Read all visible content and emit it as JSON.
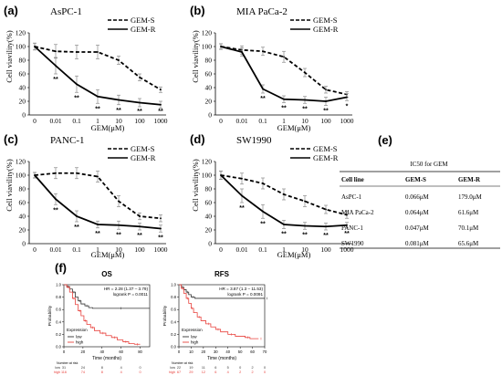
{
  "figure": {
    "viability_panels": [
      {
        "label": "(a)",
        "title": "AsPC-1",
        "ylabel": "Cell viavility(%)",
        "xlabel": "GEM(μM)",
        "xticks": [
          "0",
          "0.01",
          "0.1",
          "1",
          "10",
          "100",
          "1000"
        ],
        "yticks": [
          "0",
          "20",
          "40",
          "60",
          "80",
          "100",
          "120"
        ],
        "ylim": [
          0,
          120
        ],
        "legend": [
          "GEM-S",
          "GEM-R"
        ],
        "series": [
          {
            "name": "GEM-S",
            "style": "dashed",
            "values": [
              100,
              93,
              92,
              92,
              80,
              55,
              37
            ],
            "errors": [
              5,
              10,
              10,
              10,
              6,
              5,
              4
            ]
          },
          {
            "name": "GEM-R",
            "style": "solid",
            "values": [
              100,
              72,
              45,
              27,
              22,
              18,
              15
            ],
            "errors": [
              5,
              12,
              12,
              10,
              7,
              6,
              5
            ]
          }
        ],
        "stars": [
          "",
          "**",
          "**",
          "**",
          "**",
          "**",
          "**"
        ]
      },
      {
        "label": "(b)",
        "title": "MIA PaCa-2",
        "ylabel": "Cell viavility(%)",
        "xlabel": "GEM(μM)",
        "xticks": [
          "0",
          "0.01",
          "0.1",
          "1",
          "10",
          "100",
          "1000"
        ],
        "yticks": [
          "0",
          "20",
          "40",
          "60",
          "80",
          "100",
          "120"
        ],
        "ylim": [
          0,
          120
        ],
        "legend": [
          "GEM-S",
          "GEM-R"
        ],
        "series": [
          {
            "name": "GEM-S",
            "style": "dashed",
            "values": [
              100,
              95,
              93,
              85,
              62,
              37,
              30
            ],
            "errors": [
              4,
              6,
              6,
              8,
              6,
              5,
              4
            ]
          },
          {
            "name": "GEM-R",
            "style": "solid",
            "values": [
              100,
              92,
              38,
              23,
              22,
              20,
              26
            ],
            "errors": [
              4,
              6,
              6,
              5,
              5,
              6,
              5
            ]
          }
        ],
        "stars": [
          "",
          "",
          "**",
          "**",
          "**",
          "**",
          "*"
        ]
      },
      {
        "label": "(c)",
        "title": "PANC-1",
        "ylabel": "Cell viavility(%)",
        "xlabel": "GEM(μM)",
        "xticks": [
          "0",
          "0.01",
          "0.1",
          "1",
          "10",
          "100",
          "1000"
        ],
        "yticks": [
          "0",
          "20",
          "40",
          "60",
          "80",
          "100",
          "120"
        ],
        "ylim": [
          0,
          120
        ],
        "legend": [
          "GEM-S",
          "GEM-R"
        ],
        "series": [
          {
            "name": "GEM-S",
            "style": "dashed",
            "values": [
              100,
              103,
              103,
              98,
              62,
              40,
              37
            ],
            "errors": [
              4,
              8,
              8,
              8,
              8,
              5,
              5
            ]
          },
          {
            "name": "GEM-R",
            "style": "solid",
            "values": [
              100,
              65,
              40,
              28,
              27,
              25,
              22
            ],
            "errors": [
              4,
              8,
              8,
              5,
              6,
              5,
              5
            ]
          }
        ],
        "stars": [
          "",
          "**",
          "**",
          "**",
          "**",
          "**",
          "**"
        ]
      },
      {
        "label": "(d)",
        "title": "SW1990",
        "ylabel": "Cell viavility(%)",
        "xlabel": "GEM(μM)",
        "xticks": [
          "0",
          "0.01",
          "0.1",
          "1",
          "10",
          "100",
          "1000"
        ],
        "yticks": [
          "0",
          "20",
          "40",
          "60",
          "80",
          "100",
          "120"
        ],
        "ylim": [
          0,
          120
        ],
        "legend": [
          "GEM-S",
          "GEM-R"
        ],
        "series": [
          {
            "name": "GEM-S",
            "style": "dashed",
            "values": [
              100,
              95,
              88,
              72,
              62,
              50,
              42
            ],
            "errors": [
              6,
              8,
              8,
              8,
              8,
              6,
              5
            ]
          },
          {
            "name": "GEM-R",
            "style": "solid",
            "values": [
              100,
              70,
              47,
              28,
              26,
              25,
              27
            ],
            "errors": [
              6,
              10,
              10,
              6,
              5,
              5,
              4
            ]
          }
        ],
        "stars": [
          "",
          "**",
          "**",
          "**",
          "**",
          "**",
          "**"
        ]
      }
    ],
    "ic50": {
      "label": "(e)",
      "title": "IC50 for GEM",
      "headers": [
        "Cell line",
        "GEM-S",
        "GEM-R"
      ],
      "rows": [
        [
          "AsPC-1",
          "0.066μM",
          "179.0μM"
        ],
        [
          "MIA PaCa-2",
          "0.064μM",
          "61.6μM"
        ],
        [
          "PANC-1",
          "0.047μM",
          "70.1μM"
        ],
        [
          "SW1990",
          "0.081μM",
          "65.6μM"
        ]
      ]
    },
    "km_label": "(f)",
    "km_panels": [
      {
        "title": "OS",
        "hr_text": "HR = 2.28 (1.37 – 3.79)",
        "p_text": "logrank P = 0.0011",
        "ylabel": "Probability",
        "xlabel": "Time (months)",
        "xticks": [
          "0",
          "20",
          "40",
          "60",
          "80"
        ],
        "xmax": 90,
        "yticks": [
          "0.0",
          "0.2",
          "0.4",
          "0.6",
          "0.8",
          "1.0"
        ],
        "legend_title": "Expression",
        "legend": [
          "low",
          "high"
        ],
        "colors": {
          "low": "#333333",
          "high": "#e8413c"
        },
        "low_curve": [
          [
            0,
            1.0
          ],
          [
            3,
            0.97
          ],
          [
            6,
            0.93
          ],
          [
            9,
            0.88
          ],
          [
            12,
            0.8
          ],
          [
            15,
            0.74
          ],
          [
            18,
            0.69
          ],
          [
            22,
            0.66
          ],
          [
            26,
            0.63
          ],
          [
            30,
            0.62
          ],
          [
            90,
            0.62
          ]
        ],
        "high_curve": [
          [
            0,
            1.0
          ],
          [
            3,
            0.96
          ],
          [
            6,
            0.88
          ],
          [
            9,
            0.78
          ],
          [
            12,
            0.68
          ],
          [
            15,
            0.58
          ],
          [
            18,
            0.5
          ],
          [
            21,
            0.42
          ],
          [
            24,
            0.36
          ],
          [
            28,
            0.31
          ],
          [
            32,
            0.26
          ],
          [
            38,
            0.22
          ],
          [
            44,
            0.18
          ],
          [
            50,
            0.15
          ],
          [
            56,
            0.11
          ],
          [
            62,
            0.08
          ],
          [
            68,
            0.05
          ],
          [
            74,
            0.04
          ],
          [
            80,
            0.04
          ]
        ],
        "risk_title": "Number at risk",
        "risk_rows": [
          {
            "name": "low",
            "values": [
              "31",
              "24",
              "8",
              "4",
              "0"
            ]
          },
          {
            "name": "high",
            "values": [
              "116",
              "74",
              "8",
              "4",
              "0"
            ]
          }
        ]
      },
      {
        "title": "RFS",
        "hr_text": "HR = 3.87 (1.3 – 11.53)",
        "p_text": "logrank P = 0.0091",
        "ylabel": "Probability",
        "xlabel": "Time (months)",
        "xticks": [
          "0",
          "10",
          "20",
          "30",
          "40",
          "50",
          "60",
          "70"
        ],
        "xmax": 70,
        "yticks": [
          "0.0",
          "0.2",
          "0.4",
          "0.6",
          "0.8",
          "1.0"
        ],
        "legend_title": "Expression",
        "legend": [
          "low",
          "high"
        ],
        "colors": {
          "low": "#333333",
          "high": "#e8413c"
        },
        "low_curve": [
          [
            0,
            1.0
          ],
          [
            2,
            0.96
          ],
          [
            4,
            0.92
          ],
          [
            6,
            0.88
          ],
          [
            8,
            0.84
          ],
          [
            10,
            0.8
          ],
          [
            13,
            0.78
          ],
          [
            70,
            0.78
          ]
        ],
        "high_curve": [
          [
            0,
            1.0
          ],
          [
            2,
            0.94
          ],
          [
            4,
            0.86
          ],
          [
            6,
            0.78
          ],
          [
            8,
            0.7
          ],
          [
            10,
            0.62
          ],
          [
            12,
            0.55
          ],
          [
            15,
            0.48
          ],
          [
            18,
            0.42
          ],
          [
            22,
            0.37
          ],
          [
            26,
            0.32
          ],
          [
            30,
            0.28
          ],
          [
            34,
            0.24
          ],
          [
            40,
            0.2
          ],
          [
            46,
            0.17
          ],
          [
            54,
            0.15
          ],
          [
            58,
            0.13
          ],
          [
            65,
            0.13
          ]
        ],
        "risk_title": "Number at risk",
        "risk_rows": [
          {
            "name": "low",
            "values": [
              "22",
              "19",
              "11",
              "6",
              "5",
              "0",
              "2",
              "0"
            ]
          },
          {
            "name": "high",
            "values": [
              "67",
              "29",
              "12",
              "6",
              "4",
              "2",
              "2",
              "0"
            ]
          }
        ]
      }
    ]
  },
  "chart_data": [
    {
      "type": "line",
      "title": "AsPC-1",
      "categories": [
        "0",
        "0.01",
        "0.1",
        "1",
        "10",
        "100",
        "1000"
      ],
      "xlabel": "GEM(μM)",
      "ylabel": "Cell viavility(%)",
      "ylim": [
        0,
        120
      ],
      "legend": "top-right",
      "series": [
        {
          "name": "GEM-S",
          "values": [
            100,
            93,
            92,
            92,
            80,
            55,
            37
          ]
        },
        {
          "name": "GEM-R",
          "values": [
            100,
            72,
            45,
            27,
            22,
            18,
            15
          ]
        }
      ]
    },
    {
      "type": "line",
      "title": "MIA PaCa-2",
      "categories": [
        "0",
        "0.01",
        "0.1",
        "1",
        "10",
        "100",
        "1000"
      ],
      "xlabel": "GEM(μM)",
      "ylabel": "Cell viavility(%)",
      "ylim": [
        0,
        120
      ],
      "legend": "top-right",
      "series": [
        {
          "name": "GEM-S",
          "values": [
            100,
            95,
            93,
            85,
            62,
            37,
            30
          ]
        },
        {
          "name": "GEM-R",
          "values": [
            100,
            92,
            38,
            23,
            22,
            20,
            26
          ]
        }
      ]
    },
    {
      "type": "line",
      "title": "PANC-1",
      "categories": [
        "0",
        "0.01",
        "0.1",
        "1",
        "10",
        "100",
        "1000"
      ],
      "xlabel": "GEM(μM)",
      "ylabel": "Cell viavility(%)",
      "ylim": [
        0,
        120
      ],
      "legend": "top-right",
      "series": [
        {
          "name": "GEM-S",
          "values": [
            100,
            103,
            103,
            98,
            62,
            40,
            37
          ]
        },
        {
          "name": "GEM-R",
          "values": [
            100,
            65,
            40,
            28,
            27,
            25,
            22
          ]
        }
      ]
    },
    {
      "type": "line",
      "title": "SW1990",
      "categories": [
        "0",
        "0.01",
        "0.1",
        "1",
        "10",
        "100",
        "1000"
      ],
      "xlabel": "GEM(μM)",
      "ylabel": "Cell viavility(%)",
      "ylim": [
        0,
        120
      ],
      "legend": "top-right",
      "series": [
        {
          "name": "GEM-S",
          "values": [
            100,
            95,
            88,
            72,
            62,
            50,
            42
          ]
        },
        {
          "name": "GEM-R",
          "values": [
            100,
            70,
            47,
            28,
            26,
            25,
            27
          ]
        }
      ]
    },
    {
      "type": "table",
      "title": "IC50 for GEM",
      "headers": [
        "Cell line",
        "GEM-S",
        "GEM-R"
      ],
      "rows": [
        [
          "AsPC-1",
          "0.066μM",
          "179.0μM"
        ],
        [
          "MIA PaCa-2",
          "0.064μM",
          "61.6μM"
        ],
        [
          "PANC-1",
          "0.047μM",
          "70.1μM"
        ],
        [
          "SW1990",
          "0.081μM",
          "65.6μM"
        ]
      ]
    },
    {
      "type": "line",
      "title": "OS",
      "xlabel": "Time (months)",
      "ylabel": "Probability",
      "ylim": [
        0,
        1
      ],
      "xlim": [
        0,
        90
      ],
      "legend": "bottom-left",
      "series": [
        {
          "name": "low",
          "values": [
            1.0,
            0.97,
            0.93,
            0.88,
            0.8,
            0.74,
            0.69,
            0.66,
            0.63,
            0.62,
            0.62
          ]
        },
        {
          "name": "high",
          "values": [
            1.0,
            0.96,
            0.88,
            0.78,
            0.68,
            0.58,
            0.5,
            0.42,
            0.36,
            0.31,
            0.26,
            0.22,
            0.18,
            0.15,
            0.11,
            0.08,
            0.05,
            0.04,
            0.04
          ]
        }
      ]
    },
    {
      "type": "line",
      "title": "RFS",
      "xlabel": "Time (months)",
      "ylabel": "Probability",
      "ylim": [
        0,
        1
      ],
      "xlim": [
        0,
        70
      ],
      "legend": "bottom-left",
      "series": [
        {
          "name": "low",
          "values": [
            1.0,
            0.96,
            0.92,
            0.88,
            0.84,
            0.8,
            0.78,
            0.78
          ]
        },
        {
          "name": "high",
          "values": [
            1.0,
            0.94,
            0.86,
            0.78,
            0.7,
            0.62,
            0.55,
            0.48,
            0.42,
            0.37,
            0.32,
            0.28,
            0.24,
            0.2,
            0.17,
            0.15,
            0.13,
            0.13
          ]
        }
      ]
    }
  ]
}
